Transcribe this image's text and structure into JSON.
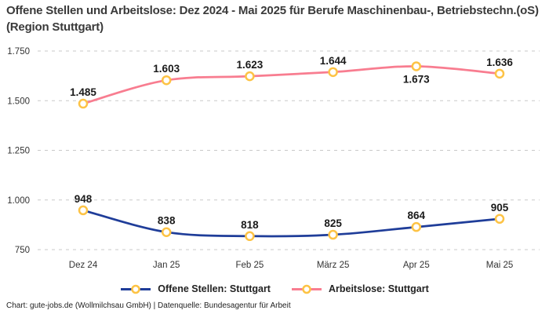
{
  "title": {
    "text": "Offene Stellen und Arbeitslose: Dez 2024 - Mai 2025 für Berufe Maschinenbau-, Betriebstechn.(oS) (Region Stuttgart)"
  },
  "footer": {
    "text": "Chart: gute-jobs.de (Wollmilchsau GmbH) | Datenquelle: Bundesagentur für Arbeit"
  },
  "colors": {
    "title_text": "#3a3a3a",
    "axis_text": "#333333",
    "data_label_text": "#1a1a1a",
    "gridline": "#c9c9c9",
    "marker_ring": "#fdc345",
    "marker_fill": "#ffffff",
    "series_open_positions": "#1f3d99",
    "series_unemployed": "#f87d90"
  },
  "chart_data": {
    "type": "line",
    "categories": [
      "Dez 24",
      "Jan 25",
      "Feb 25",
      "März 25",
      "Apr 25",
      "Mai 25"
    ],
    "series": [
      {
        "name": "Offene Stellen: Stuttgart",
        "values": [
          948,
          838,
          818,
          825,
          864,
          905
        ],
        "color": "#1f3d99",
        "label_below": [
          false,
          false,
          false,
          false,
          false,
          false
        ]
      },
      {
        "name": "Arbeitslose: Stuttgart",
        "values": [
          1485,
          1603,
          1623,
          1644,
          1673,
          1636
        ],
        "color": "#f87d90",
        "label_below": [
          false,
          false,
          false,
          false,
          true,
          false
        ]
      }
    ],
    "title": "Offene Stellen und Arbeitslose: Dez 2024 - Mai 2025 für Berufe Maschinenbau-, Betriebstechn.(oS) (Region Stuttgart)",
    "xlabel": "",
    "ylabel": "",
    "yticks": [
      1750,
      1500,
      1250,
      1000,
      750
    ],
    "ylim": [
      750,
      1750
    ],
    "grid": "horizontal-dashed",
    "legend_position": "bottom",
    "number_format": "thousands-dot",
    "marker": "circle-ring"
  }
}
